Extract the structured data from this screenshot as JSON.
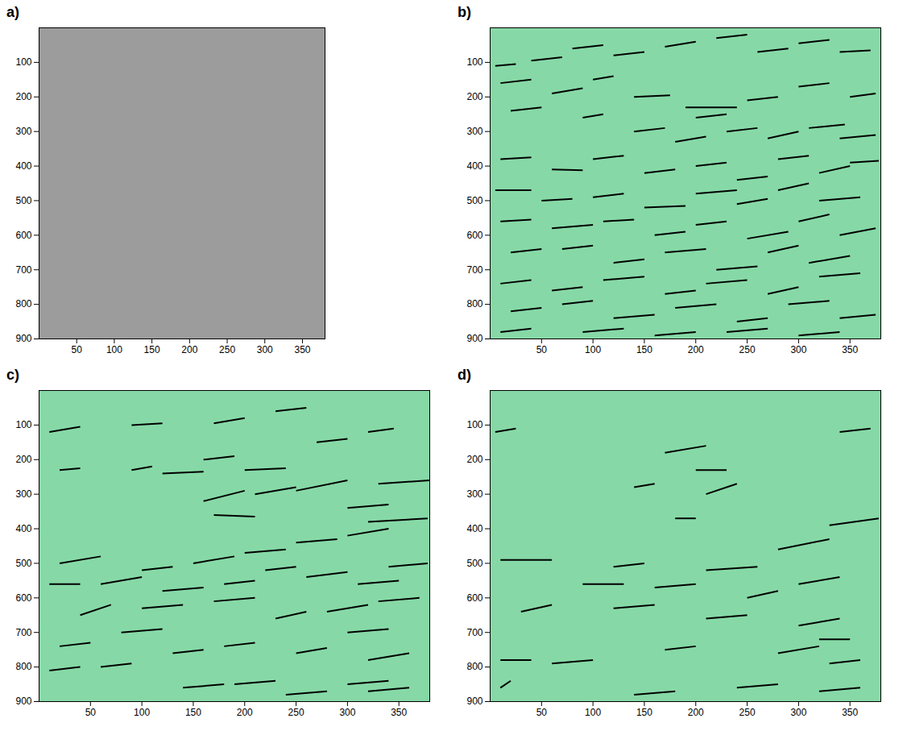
{
  "chart_data": [
    {
      "type": "image",
      "title": "a)",
      "xlim": [
        0,
        380
      ],
      "ylim": [
        0,
        900
      ],
      "xticks": [
        50,
        100,
        150,
        200,
        250,
        300,
        350
      ],
      "yticks": [
        100,
        200,
        300,
        400,
        500,
        600,
        700,
        800,
        900
      ]
    },
    {
      "type": "segments",
      "title": "b)",
      "color": "#000000",
      "xlim": [
        0,
        380
      ],
      "ylim": [
        0,
        900
      ],
      "xticks": [
        50,
        100,
        150,
        200,
        250,
        300,
        350
      ],
      "yticks": [
        100,
        200,
        300,
        400,
        500,
        600,
        700,
        800,
        900
      ],
      "segments": [
        [
          5,
          110,
          25,
          105
        ],
        [
          40,
          95,
          70,
          85
        ],
        [
          80,
          60,
          110,
          50
        ],
        [
          120,
          80,
          150,
          70
        ],
        [
          170,
          55,
          200,
          40
        ],
        [
          220,
          30,
          250,
          20
        ],
        [
          260,
          70,
          290,
          60
        ],
        [
          300,
          45,
          330,
          35
        ],
        [
          340,
          70,
          370,
          65
        ],
        [
          10,
          160,
          40,
          150
        ],
        [
          60,
          190,
          90,
          175
        ],
        [
          100,
          150,
          120,
          140
        ],
        [
          140,
          200,
          175,
          195
        ],
        [
          190,
          230,
          240,
          230
        ],
        [
          200,
          260,
          230,
          250
        ],
        [
          250,
          210,
          280,
          200
        ],
        [
          300,
          170,
          330,
          160
        ],
        [
          350,
          200,
          375,
          190
        ],
        [
          20,
          240,
          50,
          230
        ],
        [
          90,
          260,
          110,
          250
        ],
        [
          140,
          300,
          170,
          290
        ],
        [
          180,
          330,
          210,
          315
        ],
        [
          230,
          300,
          260,
          290
        ],
        [
          270,
          320,
          300,
          300
        ],
        [
          310,
          290,
          345,
          280
        ],
        [
          340,
          320,
          375,
          310
        ],
        [
          10,
          380,
          40,
          375
        ],
        [
          60,
          410,
          90,
          412
        ],
        [
          100,
          380,
          130,
          370
        ],
        [
          150,
          420,
          180,
          410
        ],
        [
          200,
          400,
          230,
          390
        ],
        [
          240,
          440,
          270,
          430
        ],
        [
          280,
          380,
          310,
          370
        ],
        [
          320,
          420,
          350,
          400
        ],
        [
          350,
          390,
          378,
          385
        ],
        [
          5,
          470,
          40,
          470
        ],
        [
          50,
          500,
          80,
          495
        ],
        [
          100,
          490,
          130,
          480
        ],
        [
          150,
          520,
          190,
          515
        ],
        [
          200,
          480,
          240,
          470
        ],
        [
          240,
          510,
          270,
          495
        ],
        [
          280,
          470,
          310,
          450
        ],
        [
          320,
          500,
          360,
          490
        ],
        [
          10,
          560,
          40,
          555
        ],
        [
          60,
          580,
          100,
          570
        ],
        [
          110,
          560,
          140,
          555
        ],
        [
          160,
          600,
          190,
          590
        ],
        [
          200,
          570,
          230,
          560
        ],
        [
          250,
          610,
          290,
          590
        ],
        [
          300,
          560,
          330,
          540
        ],
        [
          340,
          600,
          375,
          580
        ],
        [
          20,
          650,
          50,
          640
        ],
        [
          70,
          640,
          100,
          630
        ],
        [
          120,
          680,
          150,
          670
        ],
        [
          170,
          650,
          210,
          640
        ],
        [
          220,
          700,
          260,
          690
        ],
        [
          270,
          650,
          300,
          630
        ],
        [
          310,
          680,
          350,
          660
        ],
        [
          10,
          740,
          40,
          730
        ],
        [
          60,
          760,
          90,
          750
        ],
        [
          110,
          730,
          150,
          720
        ],
        [
          170,
          770,
          200,
          760
        ],
        [
          210,
          740,
          250,
          730
        ],
        [
          270,
          770,
          300,
          750
        ],
        [
          320,
          720,
          360,
          710
        ],
        [
          20,
          820,
          50,
          810
        ],
        [
          70,
          800,
          100,
          790
        ],
        [
          120,
          840,
          160,
          830
        ],
        [
          180,
          810,
          220,
          800
        ],
        [
          240,
          850,
          270,
          840
        ],
        [
          290,
          800,
          330,
          790
        ],
        [
          340,
          840,
          375,
          830
        ],
        [
          10,
          880,
          40,
          870
        ],
        [
          90,
          880,
          130,
          870
        ],
        [
          160,
          890,
          200,
          880
        ],
        [
          230,
          880,
          270,
          870
        ],
        [
          300,
          890,
          340,
          880
        ]
      ]
    },
    {
      "type": "segments",
      "title": "c)",
      "color": "#000000",
      "xlim": [
        0,
        380
      ],
      "ylim": [
        0,
        900
      ],
      "xticks": [
        50,
        100,
        150,
        200,
        250,
        300,
        350
      ],
      "yticks": [
        100,
        200,
        300,
        400,
        500,
        600,
        700,
        800,
        900
      ],
      "segments": [
        [
          10,
          120,
          40,
          105
        ],
        [
          90,
          100,
          120,
          95
        ],
        [
          170,
          95,
          200,
          80
        ],
        [
          230,
          60,
          260,
          50
        ],
        [
          270,
          150,
          300,
          140
        ],
        [
          320,
          120,
          345,
          110
        ],
        [
          90,
          230,
          110,
          220
        ],
        [
          120,
          240,
          160,
          235
        ],
        [
          160,
          200,
          190,
          190
        ],
        [
          200,
          230,
          240,
          225
        ],
        [
          20,
          230,
          40,
          225
        ],
        [
          160,
          320,
          200,
          290
        ],
        [
          210,
          300,
          250,
          280
        ],
        [
          250,
          290,
          300,
          260
        ],
        [
          300,
          340,
          340,
          330
        ],
        [
          330,
          270,
          380,
          260
        ],
        [
          170,
          360,
          210,
          365
        ],
        [
          20,
          500,
          60,
          480
        ],
        [
          100,
          520,
          130,
          510
        ],
        [
          150,
          500,
          190,
          480
        ],
        [
          200,
          470,
          240,
          460
        ],
        [
          250,
          440,
          290,
          430
        ],
        [
          300,
          420,
          340,
          400
        ],
        [
          320,
          380,
          378,
          370
        ],
        [
          10,
          560,
          40,
          560
        ],
        [
          60,
          560,
          100,
          540
        ],
        [
          120,
          580,
          160,
          570
        ],
        [
          180,
          560,
          210,
          550
        ],
        [
          220,
          520,
          250,
          510
        ],
        [
          260,
          540,
          300,
          525
        ],
        [
          310,
          560,
          350,
          550
        ],
        [
          340,
          510,
          378,
          500
        ],
        [
          40,
          650,
          70,
          620
        ],
        [
          100,
          630,
          140,
          620
        ],
        [
          170,
          610,
          210,
          600
        ],
        [
          230,
          660,
          260,
          640
        ],
        [
          280,
          640,
          320,
          620
        ],
        [
          330,
          610,
          370,
          600
        ],
        [
          20,
          740,
          50,
          730
        ],
        [
          80,
          700,
          120,
          690
        ],
        [
          130,
          760,
          160,
          750
        ],
        [
          180,
          740,
          210,
          730
        ],
        [
          250,
          760,
          280,
          745
        ],
        [
          300,
          700,
          340,
          690
        ],
        [
          320,
          780,
          360,
          760
        ],
        [
          10,
          810,
          40,
          800
        ],
        [
          60,
          800,
          90,
          790
        ],
        [
          140,
          860,
          180,
          850
        ],
        [
          190,
          850,
          230,
          840
        ],
        [
          240,
          880,
          280,
          870
        ],
        [
          300,
          850,
          340,
          840
        ],
        [
          320,
          870,
          360,
          860
        ]
      ]
    },
    {
      "type": "segments",
      "title": "d)",
      "color": "#000000",
      "xlim": [
        0,
        380
      ],
      "ylim": [
        0,
        900
      ],
      "xticks": [
        50,
        100,
        150,
        200,
        250,
        300,
        350
      ],
      "yticks": [
        100,
        200,
        300,
        400,
        500,
        600,
        700,
        800,
        900
      ],
      "segments": [
        [
          5,
          120,
          25,
          110
        ],
        [
          170,
          180,
          210,
          160
        ],
        [
          140,
          280,
          160,
          270
        ],
        [
          210,
          300,
          240,
          270
        ],
        [
          340,
          120,
          370,
          110
        ],
        [
          200,
          230,
          230,
          230
        ],
        [
          10,
          490,
          60,
          490
        ],
        [
          120,
          510,
          150,
          500
        ],
        [
          210,
          520,
          260,
          510
        ],
        [
          280,
          460,
          330,
          430
        ],
        [
          330,
          390,
          378,
          370
        ],
        [
          180,
          370,
          200,
          370
        ],
        [
          90,
          560,
          130,
          560
        ],
        [
          160,
          570,
          200,
          560
        ],
        [
          250,
          600,
          280,
          580
        ],
        [
          300,
          560,
          340,
          540
        ],
        [
          30,
          640,
          60,
          620
        ],
        [
          120,
          630,
          160,
          620
        ],
        [
          210,
          660,
          250,
          650
        ],
        [
          300,
          680,
          340,
          660
        ],
        [
          320,
          720,
          350,
          720
        ],
        [
          10,
          780,
          40,
          780
        ],
        [
          60,
          790,
          100,
          780
        ],
        [
          170,
          750,
          200,
          740
        ],
        [
          280,
          760,
          320,
          740
        ],
        [
          330,
          790,
          360,
          780
        ],
        [
          140,
          880,
          180,
          870
        ],
        [
          240,
          860,
          280,
          850
        ],
        [
          320,
          870,
          360,
          860
        ],
        [
          10,
          860,
          20,
          840
        ]
      ]
    }
  ]
}
